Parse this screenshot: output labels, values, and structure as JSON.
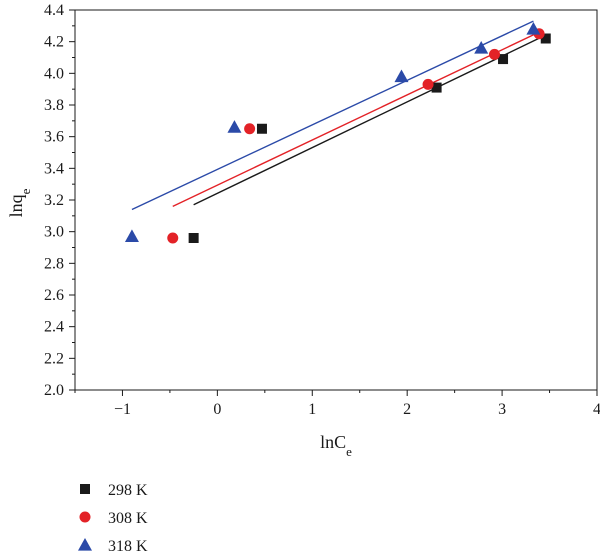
{
  "chart_data": {
    "type": "scatter",
    "xlabel": {
      "base": "lnC",
      "sub": "e"
    },
    "ylabel": {
      "base": "lnq",
      "sub": "e"
    },
    "xlim": [
      -1.5,
      4
    ],
    "ylim": [
      2.0,
      4.4
    ],
    "xticks": [
      -1,
      0,
      1,
      2,
      3,
      4
    ],
    "xtick_labels": [
      "−1",
      "0",
      "1",
      "2",
      "3",
      "4"
    ],
    "yticks": [
      2.0,
      2.2,
      2.4,
      2.6,
      2.8,
      3.0,
      3.2,
      3.4,
      3.6,
      3.8,
      4.0,
      4.2,
      4.4
    ],
    "ytick_labels": [
      "2.0",
      "2.2",
      "2.4",
      "2.6",
      "2.8",
      "3.0",
      "3.2",
      "3.4",
      "3.6",
      "3.8",
      "4.0",
      "4.2",
      "4.4"
    ],
    "legend_position": "bottom-left",
    "series": [
      {
        "name": "298 K",
        "marker": "square",
        "color": "#1a1a1a",
        "points": [
          [
            -0.25,
            2.96
          ],
          [
            0.47,
            3.65
          ],
          [
            2.31,
            3.91
          ],
          [
            3.01,
            4.09
          ],
          [
            3.46,
            4.22
          ]
        ],
        "fit": {
          "x_start": -0.25,
          "x_end": 3.42,
          "y_start": 3.17,
          "y_end": 4.23
        }
      },
      {
        "name": "308 K",
        "marker": "circle",
        "color": "#e32227",
        "points": [
          [
            -0.47,
            2.96
          ],
          [
            0.34,
            3.65
          ],
          [
            2.22,
            3.93
          ],
          [
            2.92,
            4.12
          ],
          [
            3.39,
            4.25
          ]
        ],
        "fit": {
          "x_start": -0.47,
          "x_end": 3.39,
          "y_start": 3.16,
          "y_end": 4.26
        }
      },
      {
        "name": "318 K",
        "marker": "triangle",
        "color": "#2b4aa8",
        "points": [
          [
            -0.9,
            2.97
          ],
          [
            0.18,
            3.66
          ],
          [
            1.94,
            3.98
          ],
          [
            2.78,
            4.16
          ],
          [
            3.33,
            4.28
          ]
        ],
        "fit": {
          "x_start": -0.9,
          "x_end": 3.33,
          "y_start": 3.14,
          "y_end": 4.33
        }
      }
    ]
  }
}
